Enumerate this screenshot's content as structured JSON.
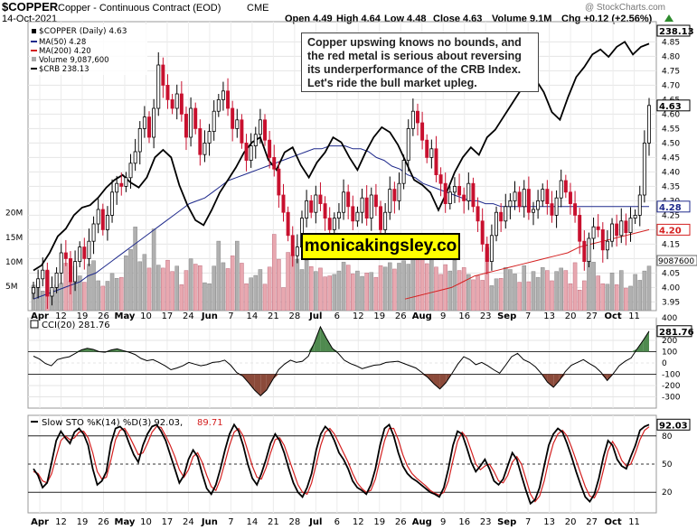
{
  "header": {
    "symbol": "$COPPER",
    "name": "Copper - Continuous Contract (EOD)",
    "exchange": "CME",
    "date": "14-Oct-2021",
    "open": "Open 4.49",
    "high": "High 4.64",
    "low": "Low 4.48",
    "close": "Close 4.63",
    "volume": "Volume 9.1M",
    "change": "Chg +0.12 (+2.56%)",
    "watermark": "@ StockCharts.com",
    "change_arrow": "up-arrow-icon"
  },
  "legend": {
    "main": "$COPPER (Daily) 4.63",
    "ma50": "MA(50) 4.28",
    "ma200": "MA(200) 4.20",
    "volume": "Volume 9,087,600",
    "crb": "$CRB 238.13"
  },
  "annotation": "Copper upswing knows no bounds, and the red metal is serious about reversing its underperformance of the CRB Index. Let's ride the bull market upleg.",
  "brand": "monicakingsley.co",
  "colors": {
    "up": "#ffffff",
    "down": "#c8102e",
    "ma50": "#1f2a8c",
    "ma200": "#d42020",
    "crb": "#000000",
    "vol_up": "#b0b0b0",
    "vol_down": "#e8a8b0",
    "cci_fill": "#4f8a4f",
    "cci_neg_fill": "#8b4a3a",
    "sto_d": "#d42020"
  },
  "chart_data": [
    {
      "type": "candlestick",
      "title": "$COPPER (Daily) 4.63",
      "ylim": [
        3.92,
        4.92
      ],
      "y_ticks": [
        "3.95",
        "4.00",
        "4.05",
        "4.10",
        "4.15",
        "4.20",
        "4.25",
        "4.30",
        "4.35",
        "4.40",
        "4.45",
        "4.50",
        "4.55",
        "4.60",
        "4.65",
        "4.70",
        "4.75",
        "4.80",
        "4.85"
      ],
      "x_labels": [
        "Apr",
        "12",
        "19",
        "26",
        "May",
        "10",
        "17",
        "24",
        "Jun",
        "7",
        "14",
        "21",
        "28",
        "Jul",
        "6",
        "12",
        "19",
        "26",
        "Aug",
        "9",
        "16",
        "23",
        "Sep",
        "7",
        "13",
        "20",
        "27",
        "Oct",
        "11"
      ],
      "close": [
        4.0,
        4.03,
        4.06,
        3.97,
        4.0,
        4.05,
        4.12,
        4.1,
        4.02,
        4.09,
        4.14,
        4.1,
        4.16,
        4.22,
        4.27,
        4.2,
        4.25,
        4.33,
        4.36,
        4.35,
        4.38,
        4.43,
        4.47,
        4.55,
        4.59,
        4.52,
        4.62,
        4.77,
        4.7,
        4.65,
        4.62,
        4.67,
        4.6,
        4.52,
        4.62,
        4.55,
        4.46,
        4.5,
        4.54,
        4.61,
        4.65,
        4.68,
        4.62,
        4.55,
        4.58,
        4.5,
        4.44,
        4.49,
        4.53,
        4.58,
        4.51,
        4.45,
        4.41,
        4.32,
        4.26,
        4.18,
        4.11,
        4.14,
        4.24,
        4.3,
        4.26,
        4.32,
        4.29,
        4.24,
        4.2,
        4.24,
        4.26,
        4.33,
        4.28,
        4.23,
        4.26,
        4.31,
        4.24,
        4.32,
        4.28,
        4.2,
        4.26,
        4.34,
        4.3,
        4.36,
        4.44,
        4.55,
        4.61,
        4.57,
        4.51,
        4.45,
        4.48,
        4.39,
        4.36,
        4.29,
        4.33,
        4.35,
        4.32,
        4.3,
        4.36,
        4.28,
        4.23,
        4.15,
        4.09,
        4.18,
        4.26,
        4.23,
        4.28,
        4.3,
        4.33,
        4.28,
        4.34,
        4.26,
        4.27,
        4.3,
        4.34,
        4.29,
        4.25,
        4.31,
        4.37,
        4.33,
        4.29,
        4.25,
        4.16,
        4.09,
        4.17,
        4.21,
        4.2,
        4.13,
        4.16,
        4.22,
        4.18,
        4.23,
        4.19,
        4.24,
        4.25,
        4.32,
        4.5,
        4.63
      ],
      "ma50": [
        3.96,
        3.97,
        3.98,
        3.99,
        4.0,
        4.01,
        4.02,
        4.04,
        4.05,
        4.07,
        4.09,
        4.11,
        4.13,
        4.15,
        4.17,
        4.19,
        4.21,
        4.23,
        4.25,
        4.27,
        4.29,
        4.3,
        4.31,
        4.33,
        4.35,
        4.37,
        4.38,
        4.39,
        4.4,
        4.41,
        4.42,
        4.43,
        4.44,
        4.45,
        4.46,
        4.47,
        4.48,
        4.48,
        4.49,
        4.49,
        4.49,
        4.48,
        4.48,
        4.47,
        4.45,
        4.44,
        4.42,
        4.41,
        4.39,
        4.38,
        4.36,
        4.35,
        4.34,
        4.33,
        4.32,
        4.31,
        4.3,
        4.3,
        4.29,
        4.29,
        4.28,
        4.28,
        4.28,
        4.28,
        4.28,
        4.28,
        4.28,
        4.28,
        4.28,
        4.28,
        4.28,
        4.28,
        4.28,
        4.28,
        4.28,
        4.28,
        4.28,
        4.28,
        4.28,
        4.28
      ],
      "ma200": [
        3.96,
        3.97,
        3.98,
        3.99,
        4.0,
        4.02,
        4.04,
        4.05,
        4.06,
        4.07,
        4.08,
        4.09,
        4.1,
        4.11,
        4.12,
        4.14,
        4.15,
        4.16,
        4.17,
        4.18,
        4.19,
        4.2
      ],
      "volume_millions": [
        5.2,
        6.0,
        4.0,
        8.1,
        4.2,
        5.3,
        5.6,
        9.7,
        6.0,
        9.1,
        7.1,
        5.8,
        9.5,
        10.2,
        6.1,
        5.0,
        6.0,
        7.6,
        6.6,
        6.8,
        11.2,
        12.5,
        17.1,
        10.0,
        11.5,
        8.7,
        16.7,
        9.3,
        8.7,
        10.3,
        8.0,
        9.1,
        5.3,
        8.2,
        10.6,
        9.5,
        9.2,
        5.7,
        5.5,
        9.1,
        14.2,
        9.8,
        8.6,
        11.2,
        14.2,
        9.7,
        5.5,
        6.7,
        7.2,
        8.4,
        5.4,
        8.9,
        15.6,
        10.5,
        4.7,
        11.9,
        11.4,
        10.5,
        8.4,
        10.3,
        9.0,
        8.0,
        8.7,
        6.9,
        7.1,
        7.4,
        8.1,
        9.9,
        9.3,
        7.5,
        8.1,
        7.0,
        7.7,
        7.8,
        6.8,
        9.2,
        8.9,
        9.8,
        8.5,
        9.7,
        10.2,
        9.5,
        12.0,
        10.8,
        11.2,
        9.6,
        10.4,
        8.9,
        7.4,
        9.4,
        8.1,
        10.3,
        8.2,
        8.8,
        7.4,
        6.3,
        7.1,
        6.2,
        12.9,
        5.1,
        6.5,
        6.6,
        8.8,
        8.4,
        7.5,
        5.8,
        9.2,
        5.9,
        8.0,
        6.8,
        8.8,
        8.2,
        6.1,
        8.0,
        8.7,
        8.2,
        5.5,
        9.8,
        4.2,
        6.1,
        10.1,
        9.9,
        7.1,
        5.5,
        5.4,
        7.7,
        5.3,
        8.2,
        4.6,
        5.0,
        7.4,
        6.2,
        8.1,
        9.1
      ],
      "volume_ticks": [
        "5M",
        "10M",
        "15M",
        "20M"
      ],
      "crb": [
        193.0,
        194.0,
        196.5,
        199.8,
        201.3,
        204.0,
        205.5,
        206.0,
        207.5,
        209.5,
        211.0,
        212.0,
        210.5,
        209.5,
        211.5,
        215.5,
        217.0,
        215.5,
        210.0,
        206.0,
        203.0,
        202.0,
        205.0,
        208.5,
        211.0,
        213.5,
        216.5,
        218.5,
        219.5,
        215.0,
        213.0,
        216.5,
        217.5,
        214.0,
        211.5,
        214.5,
        216.5,
        219.5,
        218.5,
        215.5,
        213.0,
        216.5,
        219.5,
        221.5,
        220.5,
        218.0,
        214.5,
        211.0,
        210.0,
        208.5,
        205.0,
        208.5,
        212.5,
        215.5,
        217.5,
        216.0,
        219.5,
        221.0,
        223.5,
        226.0,
        228.5,
        230.5,
        231.0,
        228.5,
        224.5,
        223.0,
        227.5,
        231.5,
        233.5,
        236.0,
        237.0,
        235.5,
        237.5,
        238.5,
        236.0,
        237.5,
        238.13
      ],
      "crb_last": "238.13",
      "last_labels": {
        "close": "4.63",
        "ma50": "4.28",
        "ma200": "4.20",
        "volume": "9087600"
      }
    },
    {
      "type": "line",
      "title": "CCI(20) 281.76",
      "ylim": [
        -400,
        400
      ],
      "y_ticks": [
        "-300",
        "-200",
        "-100",
        "0",
        "100",
        "200",
        "300",
        "400"
      ],
      "values": [
        60,
        35,
        -5,
        -25,
        30,
        45,
        55,
        85,
        115,
        130,
        120,
        100,
        95,
        115,
        125,
        110,
        95,
        75,
        40,
        20,
        30,
        5,
        -25,
        -60,
        -45,
        -25,
        5,
        -10,
        -25,
        -15,
        5,
        10,
        25,
        -20,
        -85,
        -115,
        -175,
        -240,
        -290,
        -240,
        -150,
        -60,
        -10,
        25,
        5,
        15,
        60,
        180,
        320,
        220,
        130,
        85,
        25,
        -5,
        -25,
        -50,
        -35,
        -20,
        -15,
        5,
        10,
        15,
        -5,
        -25,
        -45,
        -85,
        -130,
        -185,
        -230,
        -175,
        -95,
        -10,
        55,
        30,
        -15,
        5,
        -25,
        -60,
        -90,
        -20,
        55,
        85,
        30,
        5,
        -35,
        -95,
        -170,
        -215,
        -155,
        -75,
        -20,
        5,
        30,
        -5,
        -35,
        -85,
        -155,
        -95,
        -25,
        15,
        45,
        125,
        200,
        281.76
      ],
      "last": "281.76"
    },
    {
      "type": "line",
      "title": "Slow STO %K(14) %D(3) 92.03, 89.71",
      "label_prefix": "Slow STO %K(14) %D(3) 92.03,",
      "label_d": "89.71",
      "ylim": [
        0,
        100
      ],
      "y_ticks": [
        "20",
        "50",
        "80"
      ],
      "k": [
        45,
        38,
        25,
        30,
        52,
        75,
        85,
        78,
        72,
        84,
        88,
        82,
        70,
        45,
        28,
        32,
        42,
        72,
        88,
        90,
        85,
        72,
        60,
        52,
        70,
        82,
        90,
        92,
        85,
        75,
        60,
        45,
        30,
        38,
        55,
        65,
        58,
        40,
        24,
        18,
        28,
        45,
        65,
        82,
        92,
        85,
        70,
        50,
        35,
        28,
        40,
        55,
        72,
        82,
        75,
        62,
        45,
        30,
        20,
        15,
        25,
        40,
        65,
        82,
        90,
        85,
        75,
        62,
        55,
        45,
        32,
        25,
        22,
        18,
        28,
        45,
        70,
        88,
        92,
        80,
        62,
        48,
        40,
        35,
        32,
        28,
        24,
        20,
        18,
        15,
        25,
        45,
        70,
        85,
        82,
        68,
        52,
        42,
        48,
        55,
        45,
        32,
        28,
        34,
        48,
        62,
        55,
        38,
        22,
        8,
        12,
        25,
        48,
        70,
        82,
        88,
        84,
        72,
        58,
        42,
        28,
        15,
        10,
        18,
        35,
        58,
        75,
        70,
        55,
        48,
        45,
        58,
        70,
        86,
        90,
        92.03
      ],
      "d": [
        42,
        40,
        32,
        30,
        40,
        58,
        75,
        80,
        76,
        78,
        84,
        85,
        78,
        62,
        42,
        34,
        36,
        55,
        76,
        86,
        88,
        80,
        70,
        60,
        62,
        72,
        84,
        90,
        89,
        80,
        70,
        58,
        44,
        36,
        44,
        58,
        62,
        52,
        38,
        26,
        22,
        34,
        52,
        70,
        84,
        88,
        80,
        64,
        48,
        36,
        34,
        46,
        62,
        76,
        78,
        70,
        56,
        42,
        28,
        20,
        18,
        30,
        50,
        70,
        84,
        88,
        82,
        72,
        62,
        52,
        40,
        30,
        24,
        20,
        22,
        34,
        55,
        75,
        88,
        88,
        76,
        60,
        48,
        40,
        35,
        31,
        27,
        22,
        19,
        17,
        20,
        32,
        54,
        74,
        84,
        78,
        64,
        50,
        44,
        48,
        50,
        42,
        32,
        30,
        38,
        52,
        58,
        50,
        34,
        18,
        10,
        16,
        32,
        54,
        72,
        82,
        86,
        80,
        68,
        54,
        40,
        26,
        16,
        14,
        24,
        44,
        64,
        74,
        66,
        54,
        48,
        50,
        62,
        76,
        86,
        89.71
      ],
      "k_last": "92.03"
    }
  ]
}
